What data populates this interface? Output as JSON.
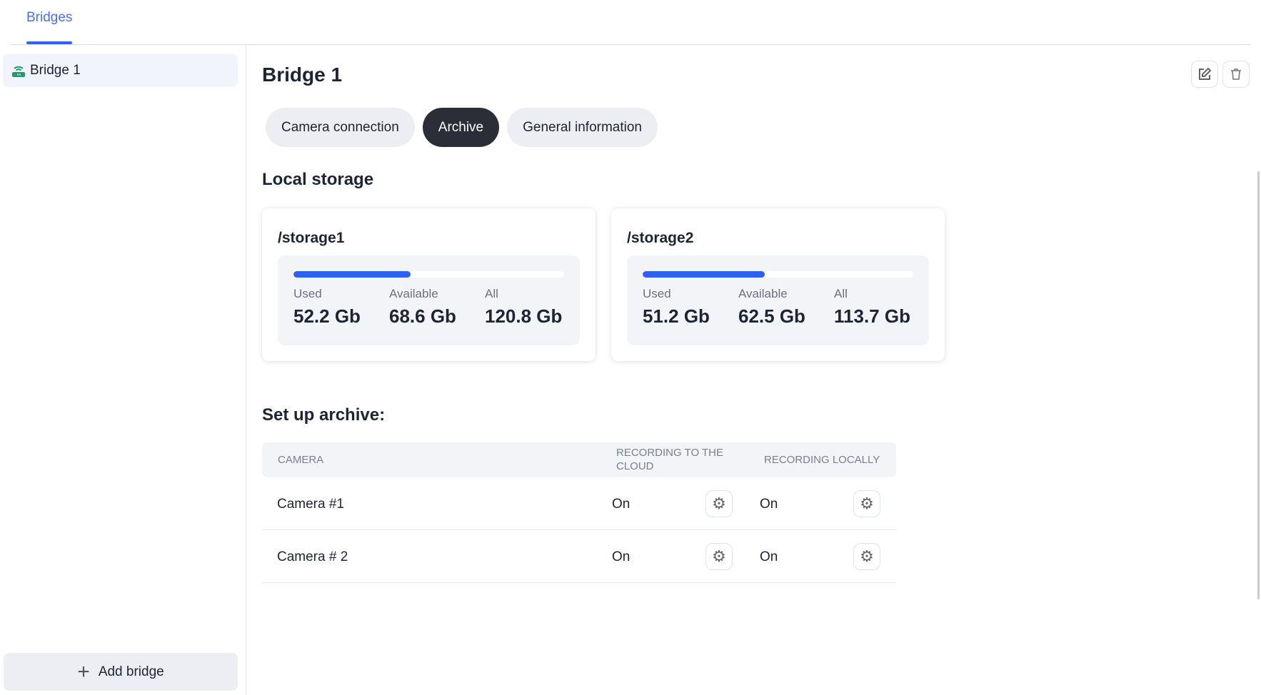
{
  "top_tab": "Bridges",
  "sidebar": {
    "items": [
      {
        "label": "Bridge 1"
      }
    ],
    "add_label": "Add bridge"
  },
  "main": {
    "title": "Bridge 1",
    "tabs": [
      {
        "label": "Camera connection"
      },
      {
        "label": "Archive"
      },
      {
        "label": "General information"
      }
    ],
    "local_storage_title": "Local storage",
    "storages": [
      {
        "name": "/storage1",
        "used_fraction": 0.432,
        "used_label": "Used",
        "used": "52.2 Gb",
        "available_label": "Available",
        "available": "68.6 Gb",
        "all_label": "All",
        "all": "120.8 Gb"
      },
      {
        "name": "/storage2",
        "used_fraction": 0.45,
        "used_label": "Used",
        "used": "51.2 Gb",
        "available_label": "Available",
        "available": "62.5 Gb",
        "all_label": "All",
        "all": "113.7 Gb"
      }
    ],
    "archive_title": "Set up archive:",
    "table": {
      "headers": [
        "CAMERA",
        "RECORDING TO THE CLOUD",
        "RECORDING LOCALLY"
      ],
      "rows": [
        {
          "camera": "Camera #1",
          "cloud": "On",
          "local": "On"
        },
        {
          "camera": "Camera # 2",
          "cloud": "On",
          "local": "On"
        }
      ]
    }
  }
}
